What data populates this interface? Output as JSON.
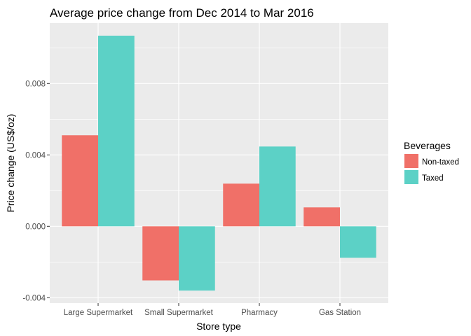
{
  "chart_data": {
    "type": "bar",
    "title": "Average price change from Dec 2014 to Mar 2016",
    "xlabel": "Store type",
    "ylabel": "Price change (US$/oz)",
    "categories": [
      "Large Supermarket",
      "Small Supermarket",
      "Pharmacy",
      "Gas Station"
    ],
    "series": [
      {
        "name": "Non-taxed",
        "color": "#F07068",
        "values": [
          0.0051,
          -0.00303,
          0.00239,
          0.00106
        ]
      },
      {
        "name": "Taxed",
        "color": "#5CD1C6",
        "values": [
          0.01068,
          -0.0036,
          0.00447,
          -0.00176
        ]
      }
    ],
    "ylim": [
      -0.0043,
      0.0114
    ],
    "yticks": [
      -0.004,
      0.0,
      0.004,
      0.008
    ],
    "ytick_labels": [
      "-0.004",
      "0.000",
      "0.004",
      "0.008"
    ],
    "grid": true,
    "legend": {
      "title": "Beverages",
      "placement": "right"
    }
  }
}
